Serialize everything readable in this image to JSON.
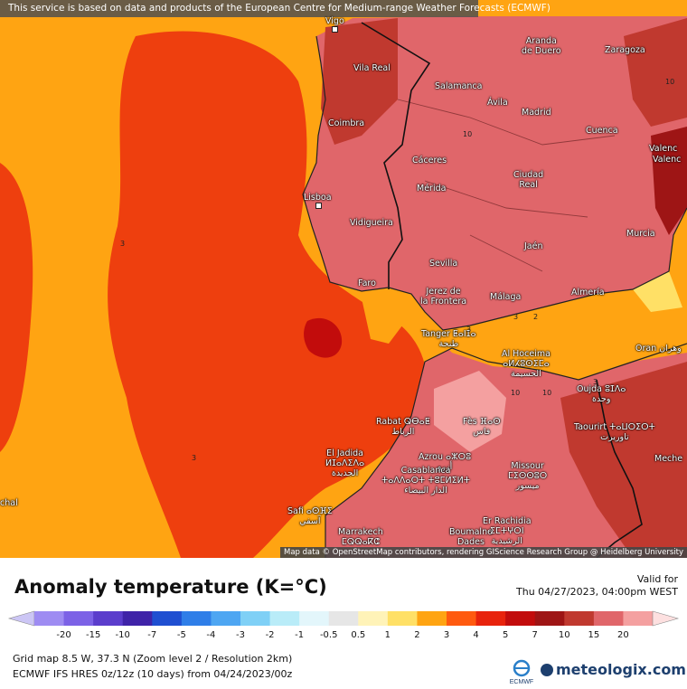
{
  "banner": "This service is based on data and products of the European Centre for Medium-range Weather Forecasts (ECMWF)",
  "attribution": "Map data © OpenStreetMap contributors, rendering GIScience Research Group @ Heidelberg University",
  "cities": {
    "vigo": "Vigo",
    "aranda": "Aranda\nde Duero",
    "zaragoza": "Zaragoza",
    "vila_real": "Vila Real",
    "salamanca": "Salamanca",
    "avila": "Ávila",
    "madrid": "Madrid",
    "coimbra": "Coimbra",
    "cuenca": "Cuenca",
    "valencia": "Valenc",
    "valencia2": "Valenc",
    "caceres": "Cáceres",
    "merida": "Mérida",
    "ciudad_real": "Ciudad\nReal",
    "lisboa": "Lisboa",
    "vidigueira": "Vidigueira",
    "jaen": "Jaén",
    "murcia": "Murcia",
    "sevilla": "Sevilla",
    "faro": "Faro",
    "jerez": "Jerez de\nla Frontera",
    "malaga": "Málaga",
    "almeria": "Almería",
    "tanger": "Tanger ⵟⴰⵏⵊⴰ\nطنجة",
    "alhoceima": "Al Hoceima\nⴰⵍⵃⵓⵙⵉⵎⴰ\nالحسيمة",
    "oran": "Oran وهران",
    "oujda": "Oujda ⵓⵊⴷⴰ\nوجدة",
    "rabat": "Rabat ⵕⴱⴰⵟ\nالرباط",
    "fes": "Fès ⴼⴰⵙ\nفاس",
    "taourirt": "Taourirt ⵜⴰⵡⵔⵉⵔⵜ\nتاوريرت",
    "eljadida": "El Jadida\nⵍⵊⴰⴷⵉⴷⴰ\nالجديدة",
    "azrou": "Azrou ⴰⵣⵔⵓ\nأزرو",
    "casablanca": "Casablanca\nⵜⴰⴷⴷⴰⵔⵜ ⵜⵓⵎⵍⵉⵍⵜ\nالدار البيضاء",
    "missour": "Missour\nⵎⵉⵙⵙⵓⵔ\nميسور",
    "meche": "Meche",
    "safi": "Safi ⴰⵙⴼⵉ\nآسفي",
    "marrakech": "Marrakech\nⵎⵕⵕⴰⴽⵛ",
    "boumalne": "Boumalne\nDades",
    "errachidia": "Er Rachidia\nⵉⵎⵜⵖⵔⵏ\nالرشيدية",
    "chal": "chal"
  },
  "contour_labels": [
    "3",
    "3",
    "3",
    "10",
    "10",
    "3",
    "2",
    "3",
    "10",
    "10"
  ],
  "title": "Anomaly temperature (K=°C)",
  "valid_label": "Valid for",
  "valid_time": "Thu 04/27/2023, 04:00pm WEST",
  "scale": {
    "ticks": [
      "-20",
      "-15",
      "-10",
      "-7",
      "-5",
      "-4",
      "-3",
      "-2",
      "-1",
      "-0.5",
      "0.5",
      "1",
      "2",
      "3",
      "4",
      "5",
      "7",
      "10",
      "15",
      "20"
    ],
    "colors": [
      "#9e8cf2",
      "#7c62e6",
      "#5b3dcc",
      "#3f23a8",
      "#1f4fd1",
      "#2f7ee8",
      "#4ea6f2",
      "#7fd0f6",
      "#b9ecf8",
      "#e3f6fb",
      "#e6e6e6",
      "#fff3b8",
      "#ffe066",
      "#ffa412",
      "#ff5a0f",
      "#e8230c",
      "#c20c0c",
      "#9e1515",
      "#c0392f",
      "#e0666a",
      "#f4a0a0"
    ]
  },
  "info": {
    "line1": "Grid map 8.5 W, 37.3 N (Zoom level 2 / Resolution 2km)",
    "line2": "ECMWF IFS HRES 0z/12z (10 days) from 04/24/2023/00z"
  },
  "logos": {
    "ecmwf": "ECMWF",
    "meteologix": "meteologix.com"
  }
}
